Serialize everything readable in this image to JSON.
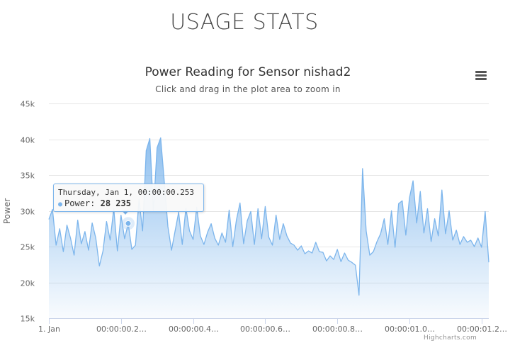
{
  "page": {
    "heading": "USAGE STATS"
  },
  "menu": {
    "icon": "hamburger-menu-icon"
  },
  "credits": "Highcharts.com",
  "colors": {
    "series": "#7cb5ec",
    "grid": "#e6e6e6",
    "axis": "#ccd6eb"
  },
  "chart_data": {
    "type": "area",
    "title": "Power Reading for Sensor nishad2",
    "subtitle": "Click and drag in the plot area to zoom in",
    "ylabel": "Power",
    "ylim": [
      15000,
      45000
    ],
    "yticks": [
      15000,
      20000,
      25000,
      30000,
      35000,
      40000,
      45000
    ],
    "ytick_labels": [
      "15k",
      "20k",
      "25k",
      "30k",
      "35k",
      "40k",
      "45k"
    ],
    "x_unit": "ms",
    "xlim": [
      0,
      1.22
    ],
    "xticks": [
      0,
      0.2,
      0.4,
      0.6,
      0.8,
      1.0,
      1.2
    ],
    "xtick_labels": [
      "1. Jan",
      "00:00:00.2…",
      "00:00:00.4…",
      "00:00:00.6…",
      "00:00:00.8…",
      "00:00:01.0…",
      "00:00:01.2…"
    ],
    "grid": true,
    "legend": false,
    "series": [
      {
        "name": "Power",
        "x": [
          0,
          0.01,
          0.02,
          0.03,
          0.04,
          0.05,
          0.06,
          0.07,
          0.08,
          0.09,
          0.1,
          0.11,
          0.12,
          0.13,
          0.14,
          0.15,
          0.16,
          0.17,
          0.18,
          0.19,
          0.2,
          0.21,
          0.22,
          0.23,
          0.24,
          0.25,
          0.26,
          0.27,
          0.28,
          0.29,
          0.3,
          0.31,
          0.32,
          0.33,
          0.34,
          0.35,
          0.36,
          0.37,
          0.38,
          0.39,
          0.4,
          0.41,
          0.42,
          0.43,
          0.44,
          0.45,
          0.46,
          0.47,
          0.48,
          0.49,
          0.5,
          0.51,
          0.52,
          0.53,
          0.54,
          0.55,
          0.56,
          0.57,
          0.58,
          0.59,
          0.6,
          0.61,
          0.62,
          0.63,
          0.64,
          0.65,
          0.66,
          0.67,
          0.68,
          0.69,
          0.7,
          0.71,
          0.72,
          0.73,
          0.74,
          0.75,
          0.76,
          0.77,
          0.78,
          0.79,
          0.8,
          0.81,
          0.82,
          0.83,
          0.84,
          0.85,
          0.86,
          0.87,
          0.88,
          0.89,
          0.9,
          0.91,
          0.92,
          0.93,
          0.94,
          0.95,
          0.96,
          0.97,
          0.98,
          0.99,
          1.0,
          1.01,
          1.02,
          1.03,
          1.04,
          1.05,
          1.06,
          1.07,
          1.08,
          1.09,
          1.1,
          1.11,
          1.12,
          1.13,
          1.14,
          1.15,
          1.16,
          1.17,
          1.18,
          1.19,
          1.2,
          1.21,
          1.22
        ],
        "y": [
          28800,
          30200,
          25200,
          27500,
          24300,
          28000,
          26200,
          23800,
          28700,
          25400,
          27100,
          24500,
          28300,
          26200,
          22300,
          24400,
          28500,
          25900,
          30300,
          24400,
          29400,
          26100,
          28235,
          24600,
          25200,
          31600,
          27200,
          38400,
          40100,
          30000,
          38800,
          40200,
          34100,
          27800,
          24500,
          27200,
          29800,
          25300,
          30400,
          27200,
          26000,
          30500,
          26500,
          25300,
          27000,
          28200,
          26200,
          25200,
          26900,
          25600,
          30100,
          25000,
          28700,
          31100,
          25400,
          28600,
          29900,
          25300,
          30300,
          26100,
          30600,
          26300,
          25200,
          29400,
          26000,
          28200,
          26500,
          25500,
          25200,
          24500,
          25100,
          24000,
          24400,
          24100,
          25600,
          24300,
          24200,
          23000,
          23700,
          23200,
          24600,
          22900,
          24100,
          23100,
          22800,
          22400,
          18200,
          35900,
          27200,
          23800,
          24300,
          25700,
          26800,
          28900,
          25300,
          30000,
          24900,
          31000,
          31400,
          26600,
          31800,
          34200,
          28300,
          32700,
          26900,
          30300,
          25700,
          28900,
          26500,
          32900,
          26800,
          30000,
          25900,
          27300,
          25300,
          26400,
          25600,
          25900,
          25000,
          26200,
          24900,
          29900,
          22800
        ]
      }
    ],
    "tooltip": {
      "date": "Thursday, Jan 1, 00:00:00.253",
      "label": "Power:",
      "value": "28 235",
      "x": 0.22,
      "y": 28235
    }
  }
}
